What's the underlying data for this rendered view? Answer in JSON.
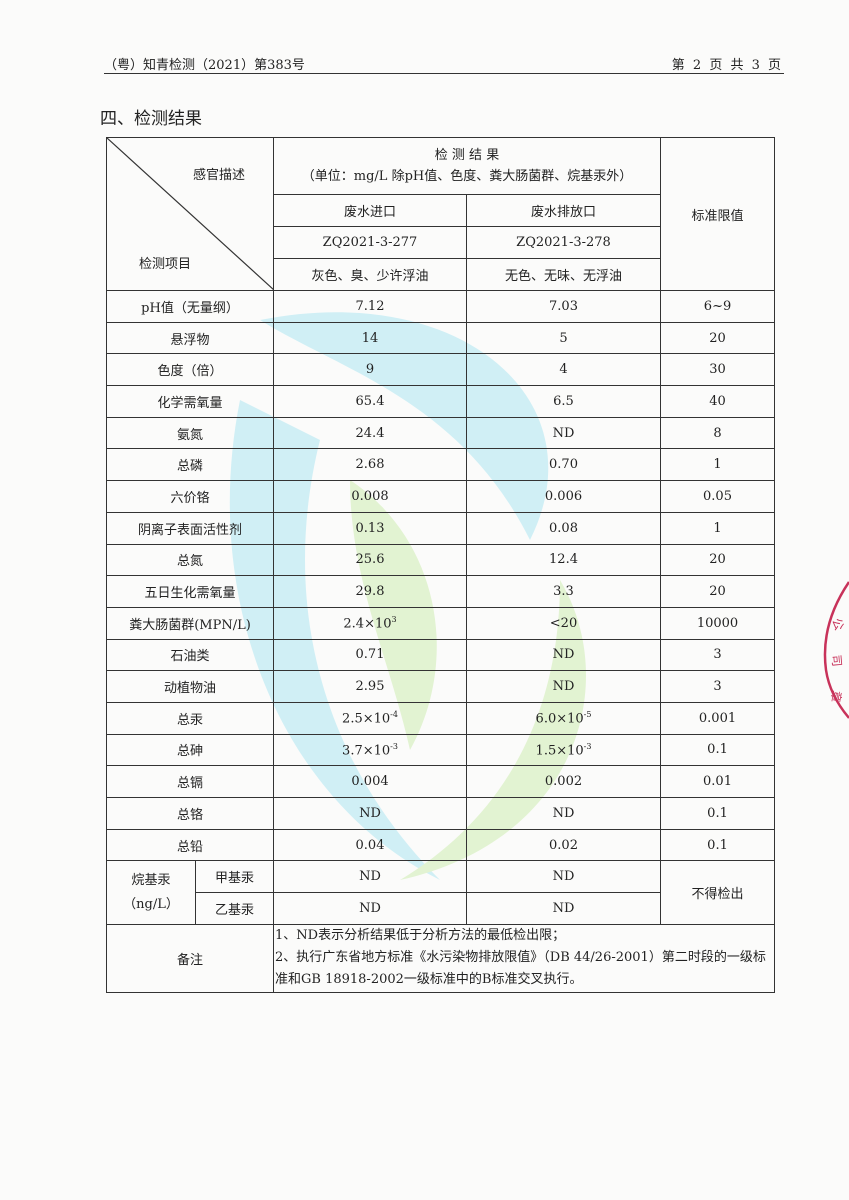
{
  "header": {
    "report_no": "（粤）知青检测（2021）第383号",
    "page": "第 2 页 共 3 页"
  },
  "section_title": "四、检测结果",
  "table": {
    "corner_top": "感官描述",
    "corner_bottom": "检测项目",
    "results_title": "检 测 结 果",
    "results_unit": "（单位：mg/L 除pH值、色度、粪大肠菌群、烷基汞外）",
    "limit_header": "标准限值",
    "sites": [
      "废水进口",
      "废水排放口"
    ],
    "sample_ids": [
      "ZQ2021-3-277",
      "ZQ2021-3-278"
    ],
    "descriptions": [
      "灰色、臭、少许浮油",
      "无色、无味、无浮油"
    ],
    "rows": [
      {
        "item": "pH值（无量纲）",
        "inlet": "7.12",
        "outlet": "7.03",
        "limit": "6~9"
      },
      {
        "item": "悬浮物",
        "inlet": "14",
        "outlet": "5",
        "limit": "20"
      },
      {
        "item": "色度（倍）",
        "inlet": "9",
        "outlet": "4",
        "limit": "30"
      },
      {
        "item": "化学需氧量",
        "inlet": "65.4",
        "outlet": "6.5",
        "limit": "40"
      },
      {
        "item": "氨氮",
        "inlet": "24.4",
        "outlet": "ND",
        "limit": "8"
      },
      {
        "item": "总磷",
        "inlet": "2.68",
        "outlet": "0.70",
        "limit": "1"
      },
      {
        "item": "六价铬",
        "inlet": "0.008",
        "outlet": "0.006",
        "limit": "0.05"
      },
      {
        "item": "阴离子表面活性剂",
        "inlet": "0.13",
        "outlet": "0.08",
        "limit": "1"
      },
      {
        "item": "总氮",
        "inlet": "25.6",
        "outlet": "12.4",
        "limit": "20"
      },
      {
        "item": "五日生化需氧量",
        "inlet": "29.8",
        "outlet": "3.3",
        "limit": "20"
      },
      {
        "item": "粪大肠菌群(MPN/L)",
        "inlet": "2.4×10",
        "inlet_exp": "3",
        "outlet": "<20",
        "limit": "10000"
      },
      {
        "item": "石油类",
        "inlet": "0.71",
        "outlet": "ND",
        "limit": "3"
      },
      {
        "item": "动植物油",
        "inlet": "2.95",
        "outlet": "ND",
        "limit": "3"
      },
      {
        "item": "总汞",
        "inlet": "2.5×10",
        "inlet_exp": "-4",
        "outlet": "6.0×10",
        "outlet_exp": "-5",
        "limit": "0.001"
      },
      {
        "item": "总砷",
        "inlet": "3.7×10",
        "inlet_exp": "-3",
        "outlet": "1.5×10",
        "outlet_exp": "-3",
        "limit": "0.1"
      },
      {
        "item": "总镉",
        "inlet": "0.004",
        "outlet": "0.002",
        "limit": "0.01"
      },
      {
        "item": "总铬",
        "inlet": "ND",
        "outlet": "ND",
        "limit": "0.1"
      },
      {
        "item": "总铅",
        "inlet": "0.04",
        "outlet": "0.02",
        "limit": "0.1"
      }
    ],
    "alkyl": {
      "group": "烷基汞",
      "unit": "（ng/L）",
      "limit": "不得检出",
      "rows": [
        {
          "item": "甲基汞",
          "inlet": "ND",
          "outlet": "ND"
        },
        {
          "item": "乙基汞",
          "inlet": "ND",
          "outlet": "ND"
        }
      ]
    },
    "notes_label": "备注",
    "notes": [
      "1、ND表示分析结果低于分析方法的最低检出限；",
      "2、执行广东省地方标准《水污染物排放限值》（DB 44/26-2001）第二时段的一级标准和GB 18918-2002一级标准中的B标准交叉执行。"
    ]
  },
  "colors": {
    "stamp": "#c8325a",
    "watermark_cyan": "#3cc8e6",
    "watermark_green": "#8fd848"
  }
}
